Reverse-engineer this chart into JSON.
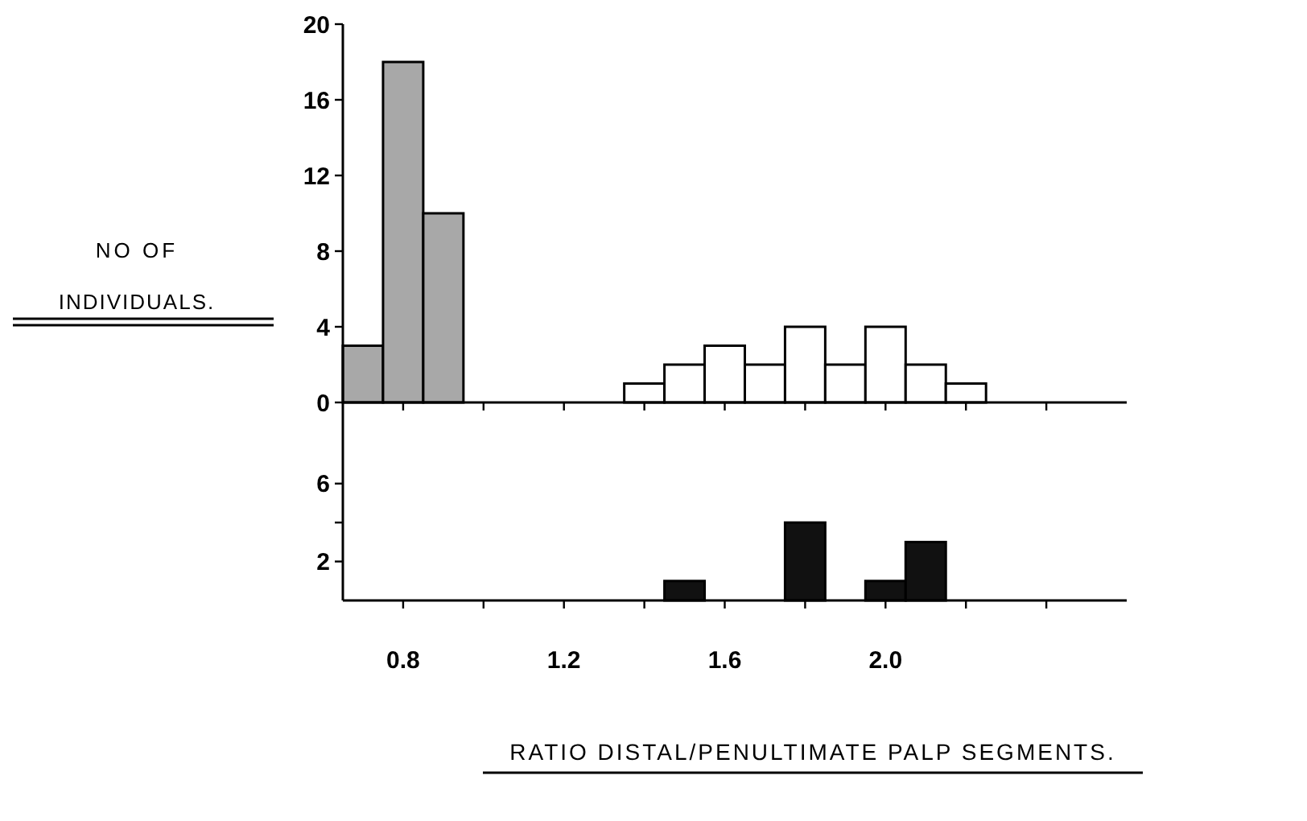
{
  "chart_data": [
    {
      "type": "histogram",
      "ylabel": "NO OF INDIVIDUALS.",
      "bins": [
        0.65,
        0.75,
        0.85,
        0.95,
        1.05,
        1.15,
        1.25,
        1.35,
        1.45,
        1.55,
        1.65,
        1.75,
        1.85,
        1.95,
        2.05,
        2.15,
        2.25
      ],
      "xlim": [
        0.65,
        2.6
      ],
      "xticks": [
        {
          "value": 0.8,
          "label": null
        },
        {
          "value": 1.0,
          "label": null
        },
        {
          "value": 1.2,
          "label": null
        },
        {
          "value": 1.4,
          "label": null
        },
        {
          "value": 1.6,
          "label": null
        },
        {
          "value": 1.8,
          "label": null
        },
        {
          "value": 2.0,
          "label": null
        },
        {
          "value": 2.2,
          "label": null
        },
        {
          "value": 2.4,
          "label": null
        }
      ],
      "ylim": [
        0,
        20
      ],
      "yticks": [
        0,
        4,
        8,
        12,
        16,
        20
      ],
      "tick_labels": "y",
      "series": [
        {
          "color": "#a8a8a8",
          "values": [
            3,
            18,
            10,
            0,
            0,
            0,
            0,
            0,
            0,
            0,
            0,
            0,
            0,
            0,
            0,
            0
          ]
        },
        {
          "color": "#ffffff",
          "values": [
            0,
            0,
            0,
            0,
            0,
            0,
            0,
            1,
            2,
            3,
            2,
            4,
            2,
            4,
            2,
            1
          ]
        }
      ]
    },
    {
      "type": "histogram",
      "xlabel": "RATIO DISTAL/PENULTIMATE PALP SEGMENTS.",
      "bins": [
        0.65,
        0.75,
        0.85,
        0.95,
        1.05,
        1.15,
        1.25,
        1.35,
        1.45,
        1.55,
        1.65,
        1.75,
        1.85,
        1.95,
        2.05,
        2.15,
        2.25
      ],
      "xlim": [
        0.65,
        2.6
      ],
      "xticks": [
        {
          "value": 0.8,
          "label": "0.8"
        },
        {
          "value": 1.0,
          "label": null
        },
        {
          "value": 1.2,
          "label": "1.2"
        },
        {
          "value": 1.4,
          "label": null
        },
        {
          "value": 1.6,
          "label": "1.6"
        },
        {
          "value": 1.8,
          "label": null
        },
        {
          "value": 2.0,
          "label": "2.0"
        },
        {
          "value": 2.2,
          "label": null
        },
        {
          "value": 2.4,
          "label": null
        }
      ],
      "ylim": [
        0,
        10
      ],
      "yticks": [
        2,
        {
          "value": 4,
          "label": null
        },
        6
      ],
      "series": [
        {
          "color": "#111111",
          "values": [
            0,
            0,
            0,
            0,
            0,
            0,
            0,
            0,
            1,
            0,
            0,
            4,
            0,
            1,
            3,
            0
          ]
        }
      ]
    }
  ]
}
